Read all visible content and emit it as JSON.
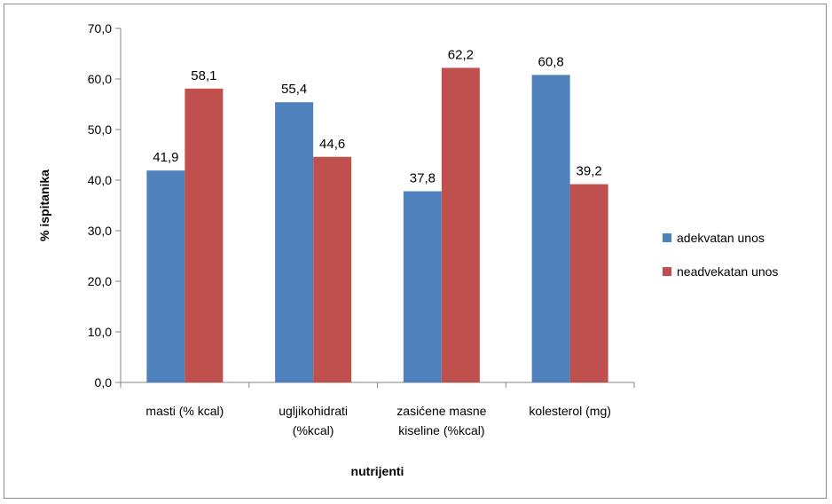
{
  "chart_data": {
    "type": "bar",
    "title": "",
    "xlabel": "nutrijenti",
    "ylabel": "% ispitanika",
    "ylim": [
      0,
      70
    ],
    "y_ticks": [
      "0,0",
      "10,0",
      "20,0",
      "30,0",
      "40,0",
      "50,0",
      "60,0",
      "70,0"
    ],
    "categories": [
      [
        "masti (% kcal)"
      ],
      [
        "ugljikohidrati",
        "(%kcal)"
      ],
      [
        "zasićene masne",
        "kiseline (%kcal)"
      ],
      [
        "kolesterol (mg)"
      ]
    ],
    "series": [
      {
        "name": "adekvatan unos",
        "color": "#4f81bd",
        "values": [
          41.9,
          55.4,
          37.8,
          60.8
        ],
        "labels": [
          "41,9",
          "55,4",
          "37,8",
          "60,8"
        ]
      },
      {
        "name": "neadvekatan unos",
        "color": "#c0504d",
        "values": [
          58.1,
          44.6,
          62.2,
          39.2
        ],
        "labels": [
          "58,1",
          "44,6",
          "62,2",
          "39,2"
        ]
      }
    ],
    "grid": false,
    "legend_position": "right"
  }
}
